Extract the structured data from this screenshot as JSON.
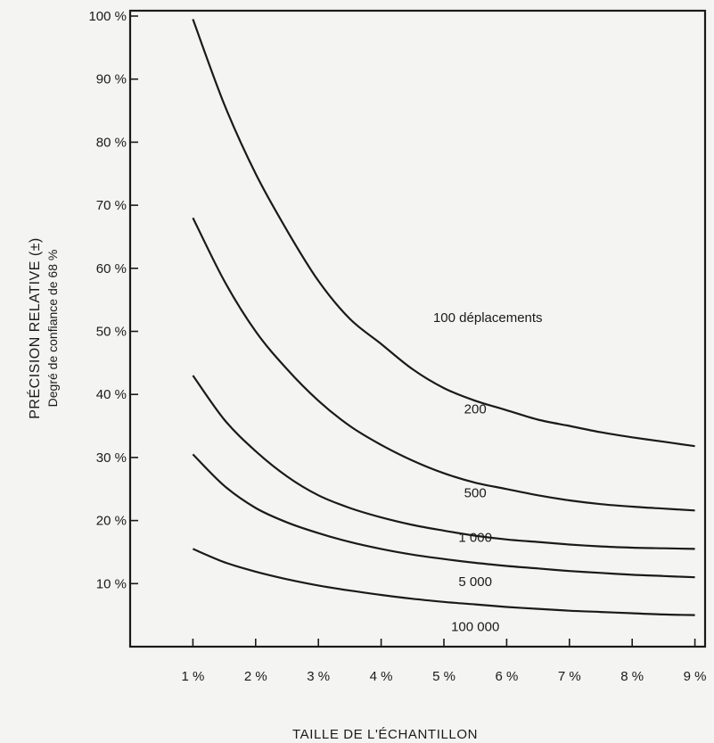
{
  "chart_data": {
    "type": "line",
    "xlabel": "TAILLE DE L'ÉCHANTILLON",
    "ylabel": "PRÉCISION RELATIVE (±)",
    "ylabel_sub": "Degré de confiance de 68 %",
    "xlim": [
      0,
      9
    ],
    "ylim": [
      0,
      100
    ],
    "x_ticks": [
      {
        "value": 1,
        "label": "1 %"
      },
      {
        "value": 2,
        "label": "2 %"
      },
      {
        "value": 3,
        "label": "3 %"
      },
      {
        "value": 4,
        "label": "4 %"
      },
      {
        "value": 5,
        "label": "5 %"
      },
      {
        "value": 6,
        "label": "6 %"
      },
      {
        "value": 7,
        "label": "7 %"
      },
      {
        "value": 8,
        "label": "8 %"
      },
      {
        "value": 9,
        "label": "9 %"
      }
    ],
    "y_ticks": [
      {
        "value": 10,
        "label": "10 %"
      },
      {
        "value": 20,
        "label": "20 %"
      },
      {
        "value": 30,
        "label": "30 %"
      },
      {
        "value": 40,
        "label": "40 %"
      },
      {
        "value": 50,
        "label": "50 %"
      },
      {
        "value": 60,
        "label": "60 %"
      },
      {
        "value": 70,
        "label": "70 %"
      },
      {
        "value": 80,
        "label": "80 %"
      },
      {
        "value": 90,
        "label": "90 %"
      },
      {
        "value": 100,
        "label": "100 %"
      }
    ],
    "grid": false,
    "series": [
      {
        "name": "100 déplacements",
        "label_at": [
          5.7,
          51.5
        ],
        "x": [
          1,
          1.5,
          2,
          2.5,
          3,
          3.5,
          4,
          4.5,
          5,
          5.5,
          6,
          6.5,
          7,
          7.5,
          8,
          8.5,
          9
        ],
        "y": [
          99.5,
          86,
          75,
          66,
          58,
          52,
          48,
          44,
          41,
          39,
          37.5,
          36,
          35,
          34,
          33.2,
          32.5,
          31.8
        ]
      },
      {
        "name": "200",
        "label_at": [
          5.5,
          37
        ],
        "x": [
          1,
          1.5,
          2,
          2.5,
          3,
          3.5,
          4,
          4.5,
          5,
          5.5,
          6,
          6.5,
          7,
          7.5,
          8,
          8.5,
          9
        ],
        "y": [
          68,
          58,
          50,
          44,
          39,
          35,
          32,
          29.5,
          27.5,
          26,
          25,
          24,
          23.2,
          22.6,
          22.2,
          21.9,
          21.6
        ]
      },
      {
        "name": "500",
        "label_at": [
          5.5,
          23.7
        ],
        "x": [
          1,
          1.5,
          2,
          2.5,
          3,
          3.5,
          4,
          4.5,
          5,
          5.5,
          6,
          6.5,
          7,
          7.5,
          8,
          8.5,
          9
        ],
        "y": [
          43,
          36,
          31,
          27,
          24,
          22,
          20.5,
          19.3,
          18.4,
          17.6,
          17,
          16.6,
          16.2,
          15.9,
          15.7,
          15.6,
          15.5
        ]
      },
      {
        "name": "1 000",
        "label_at": [
          5.5,
          16.6
        ],
        "x": [
          1,
          1.5,
          2,
          2.5,
          3,
          3.5,
          4,
          4.5,
          5,
          5.5,
          6,
          6.5,
          7,
          7.5,
          8,
          8.5,
          9
        ],
        "y": [
          30.5,
          25.5,
          22,
          19.7,
          18,
          16.6,
          15.5,
          14.6,
          13.9,
          13.3,
          12.8,
          12.4,
          12,
          11.7,
          11.4,
          11.2,
          11
        ]
      },
      {
        "name": "5 000",
        "label_at": [
          5.5,
          9.6
        ],
        "x": [
          1,
          1.5,
          2,
          2.5,
          3,
          3.5,
          4,
          4.5,
          5,
          5.5,
          6,
          6.5,
          7,
          7.5,
          8,
          8.5,
          9
        ],
        "y": [
          15.5,
          13.4,
          11.9,
          10.7,
          9.7,
          8.9,
          8.2,
          7.6,
          7.1,
          6.7,
          6.3,
          6,
          5.7,
          5.5,
          5.3,
          5.1,
          5
        ]
      },
      {
        "name": "100 000",
        "label_at": [
          5.5,
          2.5
        ],
        "x": [],
        "y": []
      }
    ]
  }
}
